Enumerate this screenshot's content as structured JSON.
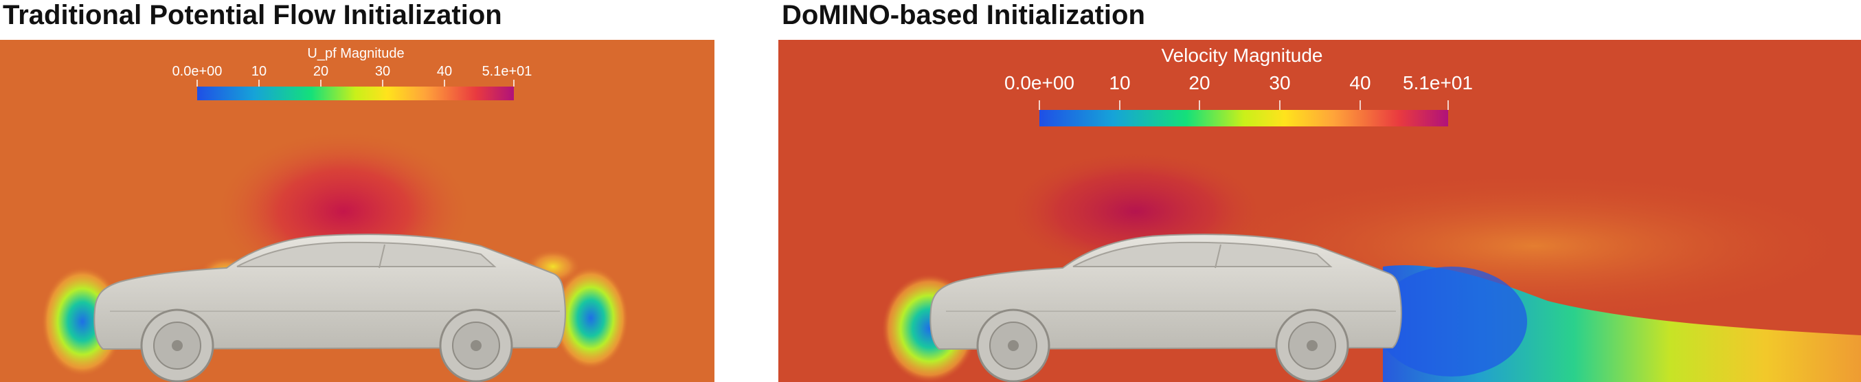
{
  "panels": {
    "left": {
      "title": "Traditional Potential Flow Initialization",
      "colorbar": {
        "title": "U_pf Magnitude",
        "ticks": [
          "0.0e+00",
          "10",
          "20",
          "30",
          "40",
          "5.1e+01"
        ]
      }
    },
    "right": {
      "title": "DoMINO-based Initialization",
      "colorbar": {
        "title": "Velocity Magnitude",
        "ticks": [
          "0.0e+00",
          "10",
          "20",
          "30",
          "40",
          "5.1e+01"
        ]
      }
    }
  },
  "colormap": {
    "stops": [
      "#1f4fe6",
      "#16a3d8",
      "#14e07a",
      "#c9f01a",
      "#ffe31c",
      "#ffa43a",
      "#e93a3f",
      "#b0127a"
    ]
  },
  "colors": {
    "background_left": "#d96a2e",
    "background_right": "#cf4a2c",
    "car_body": "#d8d6d0"
  }
}
